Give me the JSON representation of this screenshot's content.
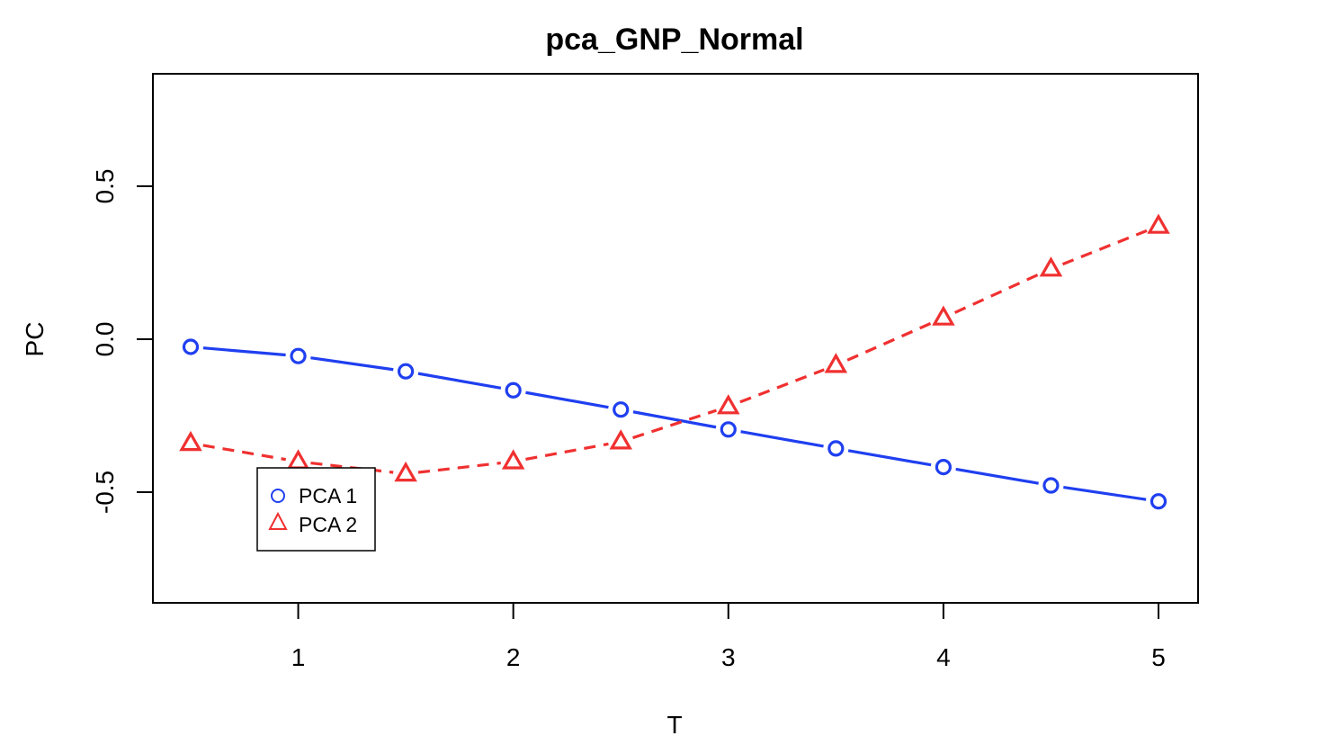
{
  "chart_data": {
    "type": "line",
    "title": "pca_GNP_Normal",
    "xlabel": "T",
    "ylabel": "PC",
    "xlim": [
      0.5,
      5
    ],
    "ylim": [
      -0.86,
      0.86
    ],
    "x_ticks": [
      1,
      2,
      3,
      4,
      5
    ],
    "y_ticks": [
      -0.5,
      0.0,
      0.5
    ],
    "x_tick_labels": [
      "1",
      "2",
      "3",
      "4",
      "5"
    ],
    "y_tick_labels": [
      "-0.5",
      "0.0",
      "0.5"
    ],
    "grid": false,
    "legend_position": "bottom-left",
    "x": [
      0.5,
      1.0,
      1.5,
      2.0,
      2.5,
      3.0,
      3.5,
      4.0,
      4.5,
      5.0
    ],
    "series": [
      {
        "name": "PCA 1",
        "color": "#1f3ff0",
        "marker": "circle",
        "line_style": "solid",
        "values": [
          -0.025,
          -0.055,
          -0.105,
          -0.167,
          -0.23,
          -0.295,
          -0.357,
          -0.418,
          -0.478,
          -0.53
        ]
      },
      {
        "name": "PCA 2",
        "color": "#f03030",
        "marker": "triangle",
        "line_style": "dashed",
        "values": [
          -0.34,
          -0.4,
          -0.44,
          -0.4,
          -0.335,
          -0.22,
          -0.085,
          0.07,
          0.23,
          0.37
        ]
      }
    ]
  }
}
